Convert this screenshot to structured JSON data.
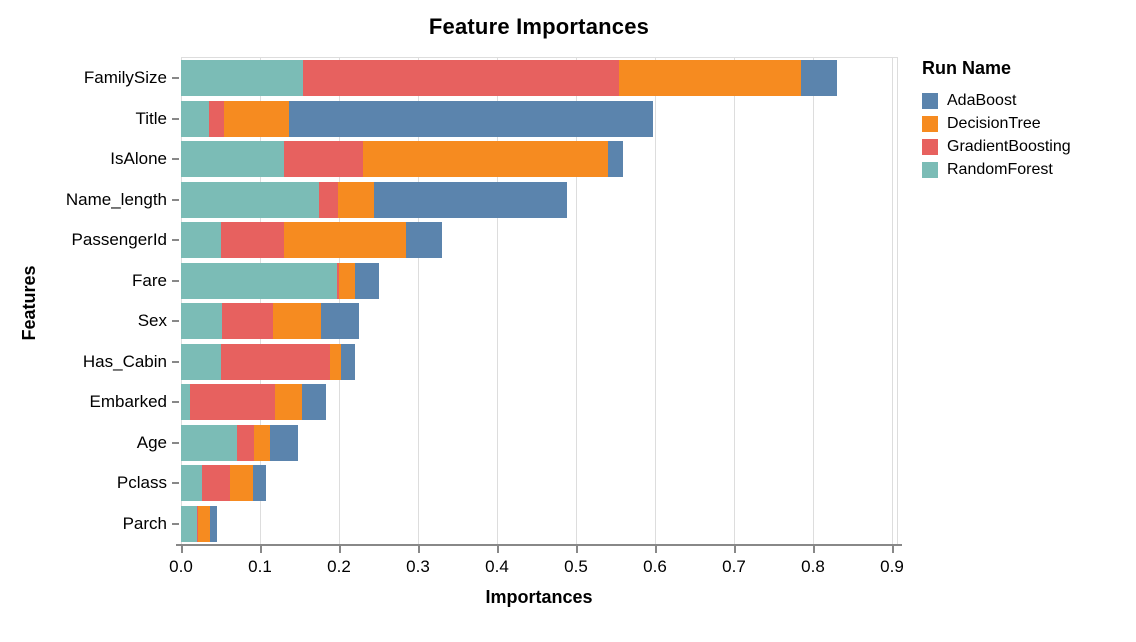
{
  "title": "Feature Importances",
  "axes": {
    "x_label": "Importances",
    "y_label": "Features",
    "x_ticks": [
      "0.0",
      "0.1",
      "0.2",
      "0.3",
      "0.4",
      "0.5",
      "0.6",
      "0.7",
      "0.8",
      "0.9"
    ]
  },
  "legend": {
    "title": "Run Name",
    "entries": [
      {
        "label": "AdaBoost",
        "color": "#5b84ad"
      },
      {
        "label": "DecisionTree",
        "color": "#f68b20"
      },
      {
        "label": "GradientBoosting",
        "color": "#e7615f"
      },
      {
        "label": "RandomForest",
        "color": "#7bbcb6"
      }
    ]
  },
  "chart_data": {
    "type": "bar",
    "orientation": "horizontal",
    "stacked": true,
    "title": "Feature Importances",
    "xlabel": "Importances",
    "ylabel": "Features",
    "xlim": [
      0,
      0.9
    ],
    "grid": true,
    "legend_position": "right",
    "categories": [
      "FamilySize",
      "Title",
      "IsAlone",
      "Name_length",
      "PassengerId",
      "Fare",
      "Sex",
      "Has_Cabin",
      "Embarked",
      "Age",
      "Pclass",
      "Parch"
    ],
    "stack_order": [
      "RandomForest",
      "GradientBoosting",
      "DecisionTree",
      "AdaBoost"
    ],
    "series": [
      {
        "name": "AdaBoost",
        "color": "#5b84ad",
        "values": [
          0.045,
          0.46,
          0.018,
          0.245,
          0.045,
          0.031,
          0.048,
          0.018,
          0.031,
          0.035,
          0.017,
          0.008
        ]
      },
      {
        "name": "DecisionTree",
        "color": "#f68b20",
        "values": [
          0.23,
          0.082,
          0.31,
          0.045,
          0.155,
          0.02,
          0.061,
          0.013,
          0.034,
          0.021,
          0.029,
          0.015
        ]
      },
      {
        "name": "GradientBoosting",
        "color": "#e7615f",
        "values": [
          0.4,
          0.02,
          0.101,
          0.024,
          0.08,
          0.002,
          0.064,
          0.139,
          0.108,
          0.021,
          0.035,
          0.002
        ]
      },
      {
        "name": "RandomForest",
        "color": "#7bbcb6",
        "values": [
          0.155,
          0.035,
          0.13,
          0.175,
          0.05,
          0.198,
          0.052,
          0.05,
          0.011,
          0.071,
          0.027,
          0.02
        ]
      }
    ],
    "feature_totals": [
      0.83,
      0.597,
      0.559,
      0.489,
      0.33,
      0.251,
      0.225,
      0.22,
      0.184,
      0.148,
      0.108,
      0.045
    ]
  }
}
